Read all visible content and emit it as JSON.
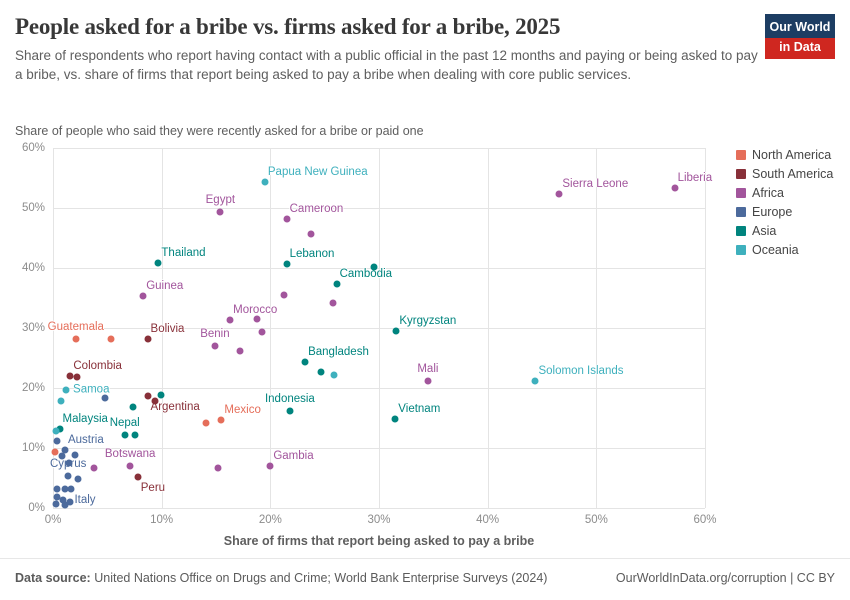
{
  "header": {
    "title": "People asked for a bribe vs. firms asked for a bribe, 2025",
    "subtitle": "Share of respondents who report having contact with a public official in the past 12 months and paying or being asked to pay a bribe, vs. share of firms that report being asked to pay a bribe when dealing with core public services.",
    "logo": {
      "line1": "Our World",
      "line2": "in Data"
    }
  },
  "chart_data": {
    "type": "scatter",
    "title": "People asked for a bribe vs. firms asked for a bribe, 2025",
    "xlabel": "Share of firms that report being asked to pay a bribe",
    "ylabel": "Share of people who said they were recently asked for a bribe or paid one",
    "xlim": [
      0,
      60
    ],
    "ylim": [
      0,
      60
    ],
    "xticks": [
      0,
      10,
      20,
      30,
      40,
      50,
      60
    ],
    "yticks": [
      0,
      10,
      20,
      30,
      40,
      50,
      60
    ],
    "tick_suffix": "%",
    "grid": true,
    "legend_position": "right",
    "legend": [
      {
        "label": "North America",
        "color": "#e56e5a"
      },
      {
        "label": "South America",
        "color": "#883039"
      },
      {
        "label": "Africa",
        "color": "#a2559c"
      },
      {
        "label": "Europe",
        "color": "#4c6a9c"
      },
      {
        "label": "Asia",
        "color": "#00847e"
      },
      {
        "label": "Oceania",
        "color": "#3eb0bd"
      }
    ],
    "points": [
      {
        "name": "Papua New Guinea",
        "x": 19.5,
        "y": 54.3,
        "continent": "Oceania",
        "anchor": "ne"
      },
      {
        "name": "Sierra Leone",
        "x": 46.6,
        "y": 52.3,
        "continent": "Africa",
        "anchor": "ne"
      },
      {
        "name": "Liberia",
        "x": 57.2,
        "y": 53.3,
        "continent": "Africa",
        "anchor": "ne"
      },
      {
        "name": "Egypt",
        "x": 15.4,
        "y": 49.4,
        "continent": "Africa",
        "anchor": "n"
      },
      {
        "name": "Cameroon",
        "x": 21.5,
        "y": 48.1,
        "continent": "Africa",
        "anchor": "ne"
      },
      {
        "name": "Thailand",
        "x": 9.7,
        "y": 40.9,
        "continent": "Asia",
        "anchor": "ne"
      },
      {
        "name": "Lebanon",
        "x": 21.5,
        "y": 40.7,
        "continent": "Asia",
        "anchor": "ne"
      },
      {
        "name": "Cambodia",
        "x": 26.1,
        "y": 37.4,
        "continent": "Asia",
        "anchor": "ne"
      },
      {
        "name": "Guinea",
        "x": 8.3,
        "y": 35.4,
        "continent": "Africa",
        "anchor": "ne"
      },
      {
        "name": "Morocco",
        "x": 16.3,
        "y": 31.3,
        "continent": "Africa",
        "anchor": "ne"
      },
      {
        "name": "Kyrgyzstan",
        "x": 31.6,
        "y": 29.5,
        "continent": "Asia",
        "anchor": "ne"
      },
      {
        "name": "Guatemala",
        "x": 2.1,
        "y": 28.2,
        "continent": "North America",
        "anchor": "n"
      },
      {
        "name": "Bolivia",
        "x": 8.7,
        "y": 28.2,
        "continent": "South America",
        "anchor": "ne"
      },
      {
        "name": "Benin",
        "x": 14.9,
        "y": 27.0,
        "continent": "Africa",
        "anchor": "n"
      },
      {
        "name": "Bangladesh",
        "x": 23.2,
        "y": 24.3,
        "continent": "Asia",
        "anchor": "ne"
      },
      {
        "name": "Colombia",
        "x": 1.6,
        "y": 22.0,
        "continent": "South America",
        "anchor": "ne"
      },
      {
        "name": "Mali",
        "x": 34.5,
        "y": 21.1,
        "continent": "Africa",
        "anchor": "n"
      },
      {
        "name": "Solomon Islands",
        "x": 44.4,
        "y": 21.1,
        "continent": "Oceania",
        "anchor": "ne"
      },
      {
        "name": "Samoa",
        "x": 1.2,
        "y": 19.6,
        "continent": "Oceania",
        "anchor": "e"
      },
      {
        "name": "Argentina",
        "x": 8.7,
        "y": 18.6,
        "continent": "South America",
        "anchor": "se"
      },
      {
        "name": "Indonesia",
        "x": 21.8,
        "y": 16.1,
        "continent": "Asia",
        "anchor": "n"
      },
      {
        "name": "Vietnam",
        "x": 31.5,
        "y": 14.9,
        "continent": "Asia",
        "anchor": "ne"
      },
      {
        "name": "Mexico",
        "x": 15.5,
        "y": 14.7,
        "continent": "North America",
        "anchor": "ne"
      },
      {
        "name": "Malaysia",
        "x": 0.6,
        "y": 13.2,
        "continent": "Asia",
        "anchor": "ne"
      },
      {
        "name": "Nepal",
        "x": 6.6,
        "y": 12.1,
        "continent": "Asia",
        "anchor": "n"
      },
      {
        "name": "Austria",
        "x": 1.1,
        "y": 9.6,
        "continent": "Europe",
        "anchor": "ne"
      },
      {
        "name": "Botswana",
        "x": 7.1,
        "y": 7.0,
        "continent": "Africa",
        "anchor": "n"
      },
      {
        "name": "Gambia",
        "x": 20.0,
        "y": 7.0,
        "continent": "Africa",
        "anchor": "ne"
      },
      {
        "name": "Cyprus",
        "x": 1.4,
        "y": 5.4,
        "continent": "Europe",
        "anchor": "n"
      },
      {
        "name": "Peru",
        "x": 7.8,
        "y": 5.2,
        "continent": "South America",
        "anchor": "se"
      },
      {
        "name": "Italy",
        "x": 1.7,
        "y": 3.2,
        "continent": "Europe",
        "anchor": "se"
      },
      {
        "x": 23.7,
        "y": 45.7,
        "continent": "Africa"
      },
      {
        "x": 29.5,
        "y": 40.2,
        "continent": "Asia"
      },
      {
        "x": 21.3,
        "y": 35.5,
        "continent": "Africa"
      },
      {
        "x": 25.8,
        "y": 34.1,
        "continent": "Africa"
      },
      {
        "x": 18.8,
        "y": 31.5,
        "continent": "Africa"
      },
      {
        "x": 19.2,
        "y": 29.3,
        "continent": "Africa"
      },
      {
        "x": 5.3,
        "y": 28.2,
        "continent": "North America"
      },
      {
        "x": 17.2,
        "y": 26.1,
        "continent": "Africa"
      },
      {
        "x": 24.7,
        "y": 22.6,
        "continent": "Asia"
      },
      {
        "x": 25.9,
        "y": 22.2,
        "continent": "Oceania"
      },
      {
        "x": 2.2,
        "y": 21.9,
        "continent": "South America"
      },
      {
        "x": 0.7,
        "y": 17.9,
        "continent": "Oceania"
      },
      {
        "x": 4.8,
        "y": 18.4,
        "continent": "Europe"
      },
      {
        "x": 9.9,
        "y": 18.8,
        "continent": "Asia"
      },
      {
        "x": 9.4,
        "y": 17.8,
        "continent": "South America"
      },
      {
        "x": 7.4,
        "y": 16.9,
        "continent": "Asia"
      },
      {
        "x": 14.1,
        "y": 14.1,
        "continent": "North America"
      },
      {
        "x": 7.5,
        "y": 12.1,
        "continent": "Asia"
      },
      {
        "x": 0.3,
        "y": 12.9,
        "continent": "Oceania"
      },
      {
        "x": 0.4,
        "y": 11.2,
        "continent": "Europe"
      },
      {
        "x": 0.2,
        "y": 9.4,
        "continent": "North America"
      },
      {
        "x": 0.8,
        "y": 8.7,
        "continent": "Europe"
      },
      {
        "x": 2.0,
        "y": 8.8,
        "continent": "Europe"
      },
      {
        "x": 1.5,
        "y": 7.5,
        "continent": "Europe"
      },
      {
        "x": 3.8,
        "y": 6.7,
        "continent": "Africa"
      },
      {
        "x": 15.2,
        "y": 6.7,
        "continent": "Africa"
      },
      {
        "x": 2.3,
        "y": 4.9,
        "continent": "Europe"
      },
      {
        "x": 0.4,
        "y": 3.2,
        "continent": "Europe"
      },
      {
        "x": 1.1,
        "y": 3.1,
        "continent": "Europe"
      },
      {
        "x": 0.4,
        "y": 1.9,
        "continent": "Europe"
      },
      {
        "x": 0.9,
        "y": 1.4,
        "continent": "Europe"
      },
      {
        "x": 1.6,
        "y": 1.0,
        "continent": "Europe"
      },
      {
        "x": 0.3,
        "y": 0.6,
        "continent": "Europe"
      },
      {
        "x": 1.1,
        "y": 0.5,
        "continent": "Europe"
      }
    ]
  },
  "footer": {
    "source_label": "Data source:",
    "source_text": "United Nations Office on Drugs and Crime; World Bank Enterprise Surveys (2024)",
    "rights": "OurWorldInData.org/corruption | CC BY"
  }
}
